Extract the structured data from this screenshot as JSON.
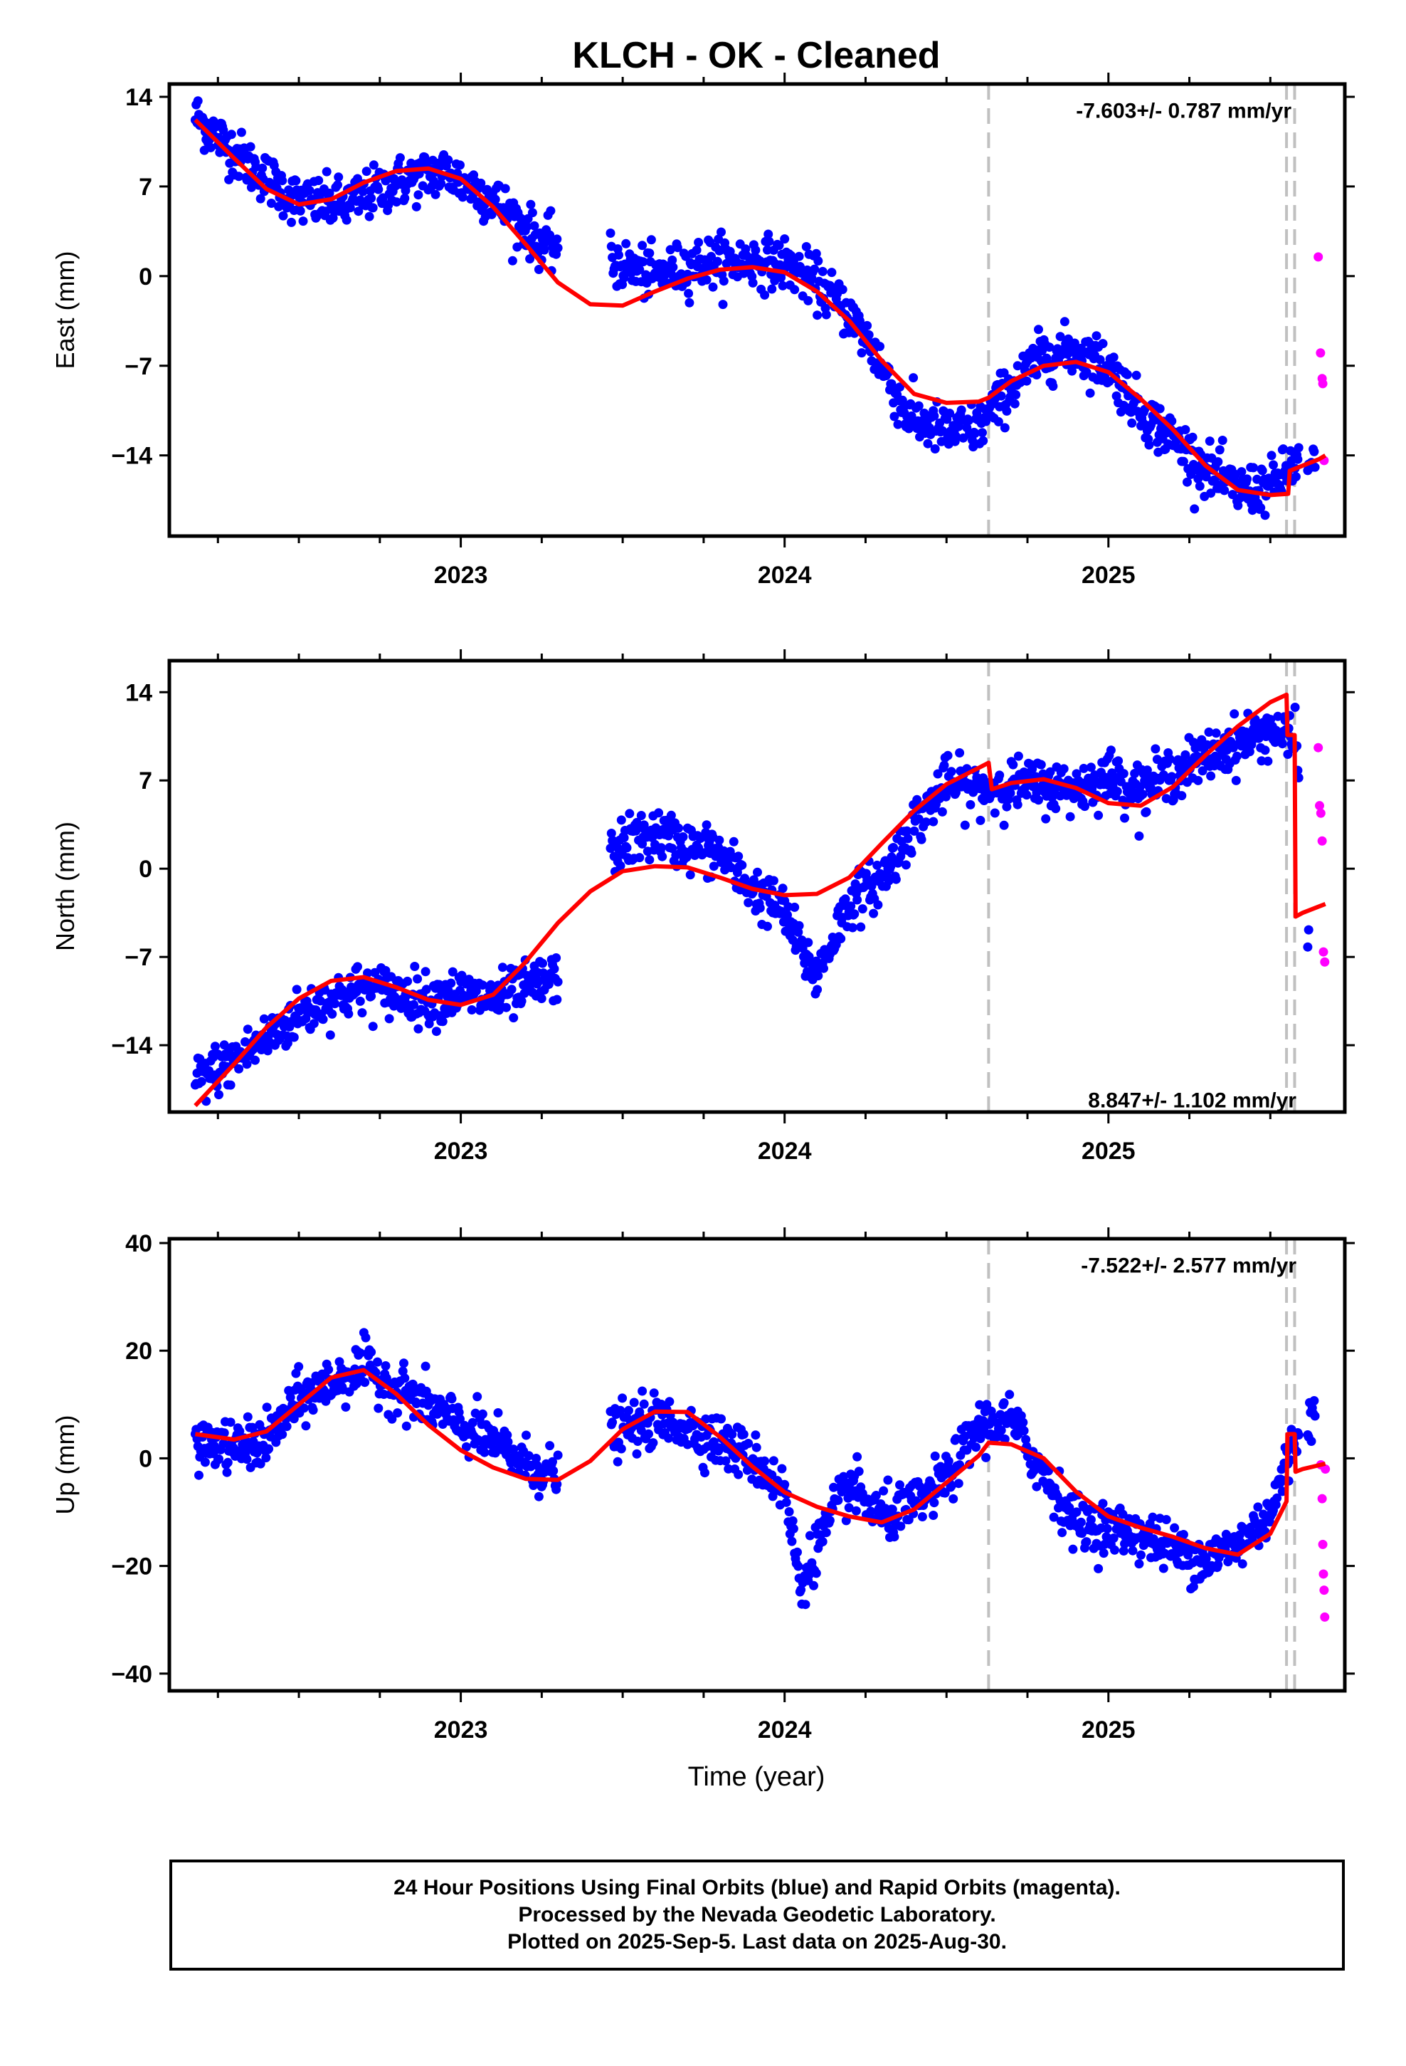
{
  "figure": {
    "title": "KLCH  - OK - Cleaned",
    "xlabel": "Time (year)",
    "footer_lines": [
      "24 Hour Positions Using Final Orbits (blue) and Rapid Orbits (magenta).",
      "Processed by the Nevada Geodetic Laboratory.",
      "Plotted on 2025-Sep-5. Last data on 2025-Aug-30."
    ]
  },
  "colors": {
    "final_orbits": "#0000ff",
    "rapid_orbits": "#ff00ff",
    "model": "#ff0000",
    "event_lines": "#c0c0c0",
    "frame": "#000000"
  },
  "chart_data": [
    {
      "type": "scatter",
      "component": "east",
      "ylabel": "East (mm)",
      "rate_text": "-7.603+/- 0.787 mm/yr",
      "xlim": [
        2022.1,
        2025.73
      ],
      "ylim": [
        -20.3,
        15.0
      ],
      "yticks": [
        14,
        7,
        0,
        -7,
        -14
      ],
      "ytick_labels": [
        "14",
        "7",
        "0",
        "−7",
        "−14"
      ],
      "xticks": [
        2023,
        2024,
        2025
      ],
      "xtick_labels": [
        "2023",
        "2024",
        "2025"
      ],
      "event_lines": [
        2024.63,
        2025.55,
        2025.575
      ],
      "model_fit": {
        "x": [
          2022.18,
          2022.3,
          2022.4,
          2022.5,
          2022.6,
          2022.7,
          2022.8,
          2022.9,
          2023.0,
          2023.1,
          2023.2,
          2023.3,
          2023.4,
          2023.5,
          2023.6,
          2023.7,
          2023.8,
          2023.9,
          2024.0,
          2024.1,
          2024.2,
          2024.3,
          2024.4,
          2024.5,
          2024.6,
          2024.63,
          2024.7,
          2024.8,
          2024.9,
          2025.0,
          2025.1,
          2025.2,
          2025.3,
          2025.4,
          2025.5,
          2025.555,
          2025.56,
          2025.6,
          2025.65,
          2025.67
        ],
        "y": [
          12.2,
          9.2,
          6.8,
          5.6,
          6.0,
          7.3,
          8.2,
          8.4,
          7.6,
          5.4,
          2.5,
          -0.5,
          -2.2,
          -2.3,
          -1.2,
          -0.2,
          0.5,
          0.7,
          0.3,
          -1.2,
          -3.5,
          -6.6,
          -9.2,
          -9.9,
          -9.8,
          -9.5,
          -8.2,
          -7.0,
          -6.7,
          -7.5,
          -9.6,
          -12.0,
          -14.8,
          -16.7,
          -17.1,
          -17.0,
          -15.2,
          -14.8,
          -14.3,
          -14.0
        ]
      },
      "rapid_orbits": {
        "x": [
          2025.648,
          2025.655,
          2025.66,
          2025.662,
          2025.666
        ],
        "y": [
          1.5,
          -6.0,
          -8.0,
          -8.4,
          -14.4
        ]
      },
      "final_orbits_trend": {
        "x": [
          2022.18,
          2022.35,
          2022.5,
          2022.65,
          2022.8,
          2022.95,
          2023.1,
          2023.25,
          2023.48,
          2023.6,
          2023.75,
          2023.9,
          2024.0,
          2024.1,
          2024.2,
          2024.28,
          2024.38,
          2024.5,
          2024.6,
          2024.7,
          2024.8,
          2024.9,
          2025.0,
          2025.1,
          2025.2,
          2025.3,
          2025.4,
          2025.5,
          2025.58,
          2025.64
        ],
        "y": [
          12.5,
          8.6,
          5.8,
          5.6,
          7.3,
          8.2,
          6.0,
          2.6,
          1.0,
          0.0,
          1.1,
          1.2,
          1.0,
          -0.5,
          -3.0,
          -6.0,
          -11.0,
          -12.2,
          -11.8,
          -8.6,
          -6.2,
          -5.8,
          -7.0,
          -10.6,
          -12.7,
          -15.0,
          -16.8,
          -16.4,
          -14.6,
          -15.2
        ]
      }
    },
    {
      "type": "scatter",
      "component": "north",
      "ylabel": "North (mm)",
      "rate_text": "8.847+/- 1.102 mm/yr",
      "xlim": [
        2022.1,
        2025.73
      ],
      "ylim": [
        -19.3,
        16.5
      ],
      "yticks": [
        14,
        7,
        0,
        -7,
        -14
      ],
      "ytick_labels": [
        "14",
        "7",
        "0",
        "−7",
        "−14"
      ],
      "xticks": [
        2023,
        2024,
        2025
      ],
      "xtick_labels": [
        "2023",
        "2024",
        "2025"
      ],
      "event_lines": [
        2024.63,
        2025.55,
        2025.575
      ],
      "model_fit": {
        "x": [
          2022.18,
          2022.3,
          2022.4,
          2022.5,
          2022.6,
          2022.7,
          2022.8,
          2022.9,
          2023.0,
          2023.1,
          2023.2,
          2023.3,
          2023.4,
          2023.5,
          2023.6,
          2023.7,
          2023.8,
          2023.9,
          2024.0,
          2024.1,
          2024.2,
          2024.3,
          2024.4,
          2024.5,
          2024.6,
          2024.63,
          2024.64,
          2024.7,
          2024.8,
          2024.9,
          2025.0,
          2025.1,
          2025.2,
          2025.3,
          2025.4,
          2025.5,
          2025.55,
          2025.553,
          2025.575,
          2025.578,
          2025.6,
          2025.65,
          2025.67
        ],
        "y": [
          -18.8,
          -15.5,
          -12.6,
          -10.3,
          -8.9,
          -8.6,
          -9.4,
          -10.4,
          -10.8,
          -10.0,
          -7.4,
          -4.3,
          -1.8,
          -0.2,
          0.2,
          0.1,
          -0.7,
          -1.6,
          -2.1,
          -2.0,
          -0.7,
          2.0,
          4.6,
          6.7,
          8.0,
          8.4,
          6.3,
          6.8,
          7.1,
          6.4,
          5.2,
          5.0,
          6.5,
          9.0,
          11.3,
          13.2,
          13.8,
          10.6,
          10.6,
          -3.8,
          -3.5,
          -3.0,
          -2.8
        ]
      },
      "rapid_orbits": {
        "x": [
          2025.648,
          2025.652,
          2025.656,
          2025.66,
          2025.664,
          2025.668
        ],
        "y": [
          9.6,
          5.0,
          4.4,
          2.2,
          -6.6,
          -7.4
        ]
      },
      "final_orbits_trend": {
        "x": [
          2022.18,
          2022.3,
          2022.4,
          2022.5,
          2022.6,
          2022.7,
          2022.8,
          2022.9,
          2023.0,
          2023.1,
          2023.2,
          2023.3,
          2023.48,
          2023.6,
          2023.7,
          2023.8,
          2023.9,
          2024.0,
          2024.05,
          2024.1,
          2024.2,
          2024.3,
          2024.4,
          2024.5,
          2024.6,
          2024.7,
          2024.8,
          2024.9,
          2025.0,
          2025.1,
          2025.2,
          2025.3,
          2025.4,
          2025.5,
          2025.58,
          2025.62
        ],
        "y": [
          -16.8,
          -15.2,
          -13.5,
          -11.6,
          -10.3,
          -9.5,
          -9.8,
          -10.4,
          -9.9,
          -10.4,
          -9.6,
          -8.5,
          1.8,
          2.8,
          1.8,
          1.2,
          -1.6,
          -3.5,
          -6.5,
          -8.5,
          -2.6,
          -0.9,
          3.5,
          6.8,
          6.2,
          6.7,
          6.6,
          6.3,
          7.4,
          6.3,
          7.6,
          8.8,
          10.0,
          11.0,
          10.0,
          -5.7
        ]
      }
    },
    {
      "type": "scatter",
      "component": "up",
      "ylabel": "Up (mm)",
      "rate_text": "-7.522+/- 2.577 mm/yr",
      "xlim": [
        2022.1,
        2025.73
      ],
      "ylim": [
        -43.2,
        40.8
      ],
      "yticks": [
        40,
        20,
        0,
        -20,
        -40
      ],
      "ytick_labels": [
        "40",
        "20",
        "0",
        "−20",
        "−40"
      ],
      "xticks": [
        2023,
        2024,
        2025
      ],
      "xtick_labels": [
        "2023",
        "2024",
        "2025"
      ],
      "event_lines": [
        2024.63,
        2025.55,
        2025.575
      ],
      "model_fit": {
        "x": [
          2022.18,
          2022.3,
          2022.4,
          2022.5,
          2022.6,
          2022.7,
          2022.8,
          2022.9,
          2023.0,
          2023.1,
          2023.2,
          2023.3,
          2023.4,
          2023.5,
          2023.6,
          2023.7,
          2023.8,
          2023.9,
          2024.0,
          2024.1,
          2024.2,
          2024.3,
          2024.4,
          2024.5,
          2024.6,
          2024.63,
          2024.7,
          2024.8,
          2024.9,
          2025.0,
          2025.1,
          2025.2,
          2025.3,
          2025.4,
          2025.5,
          2025.55,
          2025.553,
          2025.575,
          2025.578,
          2025.6,
          2025.67
        ],
        "y": [
          4.5,
          3.5,
          5.0,
          10.0,
          15.0,
          16.4,
          12.0,
          6.2,
          1.5,
          -1.7,
          -3.8,
          -4.0,
          -0.5,
          5.4,
          8.7,
          8.6,
          4.0,
          -1.5,
          -6.3,
          -9.0,
          -10.8,
          -11.9,
          -9.5,
          -4.5,
          0.5,
          2.9,
          2.6,
          0.0,
          -6.2,
          -10.8,
          -12.9,
          -14.6,
          -16.7,
          -17.9,
          -14.0,
          -8.0,
          4.5,
          4.5,
          -2.5,
          -2.0,
          -1.0
        ]
      },
      "rapid_orbits": {
        "x": [
          2025.656,
          2025.66,
          2025.662,
          2025.664,
          2025.666,
          2025.668,
          2025.67
        ],
        "y": [
          -1.2,
          -7.5,
          -16.0,
          -21.5,
          -24.5,
          -29.5,
          -2.0
        ]
      },
      "final_orbits_trend": {
        "x": [
          2022.18,
          2022.3,
          2022.4,
          2022.5,
          2022.6,
          2022.7,
          2022.8,
          2022.9,
          2023.0,
          2023.1,
          2023.2,
          2023.3,
          2023.48,
          2023.6,
          2023.7,
          2023.8,
          2023.9,
          2024.0,
          2024.05,
          2024.1,
          2024.2,
          2024.3,
          2024.4,
          2024.5,
          2024.6,
          2024.7,
          2024.8,
          2024.9,
          2025.0,
          2025.1,
          2025.2,
          2025.3,
          2025.4,
          2025.5,
          2025.58,
          2025.64
        ],
        "y": [
          2.5,
          2.0,
          3.0,
          11.0,
          14.0,
          17.0,
          13.0,
          10.0,
          6.0,
          3.0,
          -1.0,
          -3.0,
          5.0,
          7.0,
          6.0,
          3.0,
          0.0,
          -6.0,
          -24.0,
          -16.0,
          -5.0,
          -11.0,
          -9.0,
          -4.0,
          6.0,
          7.0,
          -3.0,
          -12.0,
          -13.0,
          -14.0,
          -17.0,
          -19.0,
          -16.0,
          -10.0,
          4.0,
          9.0
        ]
      }
    }
  ]
}
